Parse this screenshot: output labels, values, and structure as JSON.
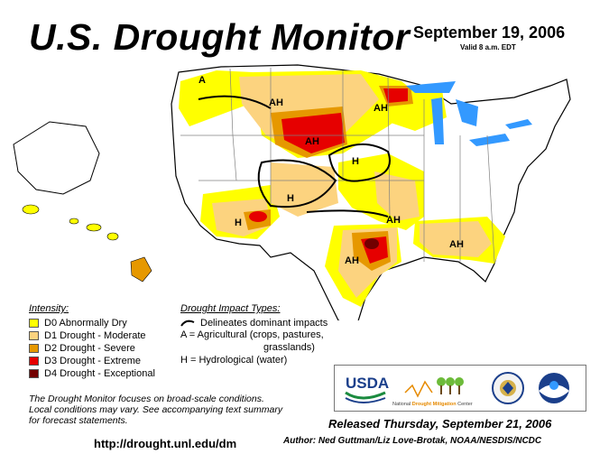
{
  "header": {
    "title": "U.S. Drought Monitor",
    "date": "September 19, 2006",
    "valid": "Valid 8 a.m. EDT"
  },
  "legend": {
    "heading": "Intensity:",
    "items": [
      {
        "label": "D0 Abnormally Dry",
        "color": "#ffff00"
      },
      {
        "label": "D1 Drought - Moderate",
        "color": "#fcd37f"
      },
      {
        "label": "D2 Drought - Severe",
        "color": "#e69800"
      },
      {
        "label": "D3 Drought - Extreme",
        "color": "#e60000"
      },
      {
        "label": "D4 Drought - Exceptional",
        "color": "#730000"
      }
    ]
  },
  "impacts": {
    "heading": "Drought Impact Types:",
    "delineates": "Delineates dominant impacts",
    "agricultural_line1": "A = Agricultural (crops, pastures,",
    "agricultural_line2": "grasslands)",
    "hydrological": "H = Hydrological (water)"
  },
  "map_labels": {
    "a_northwest": "A",
    "ah_montana": "AH",
    "ah_great_lakes": "AH",
    "ah_dakotas": "AH",
    "h_plains": "H",
    "h_colorado": "H",
    "h_arizona": "H",
    "ah_arkansas": "AH",
    "ah_southeast": "AH",
    "ah_texas": "AH"
  },
  "note": {
    "line1": "The Drought Monitor focuses on broad-scale conditions.",
    "line2": "Local conditions may vary. See accompanying text summary",
    "line3": "for forecast statements."
  },
  "logos": {
    "usda": "USDA",
    "ndmc_prefix": "National",
    "ndmc_highlight": "Drought Mitigation",
    "ndmc_suffix": "Center"
  },
  "footer": {
    "url": "http://drought.unl.edu/dm",
    "released": "Released Thursday, September 21, 2006",
    "author": "Author: Ned Guttman/Liz Love-Brotak, NOAA/NESDIS/NCDC"
  },
  "colors": {
    "water": "#3399ff",
    "land": "#ffffff",
    "border": "#808080",
    "outline": "#000000"
  }
}
